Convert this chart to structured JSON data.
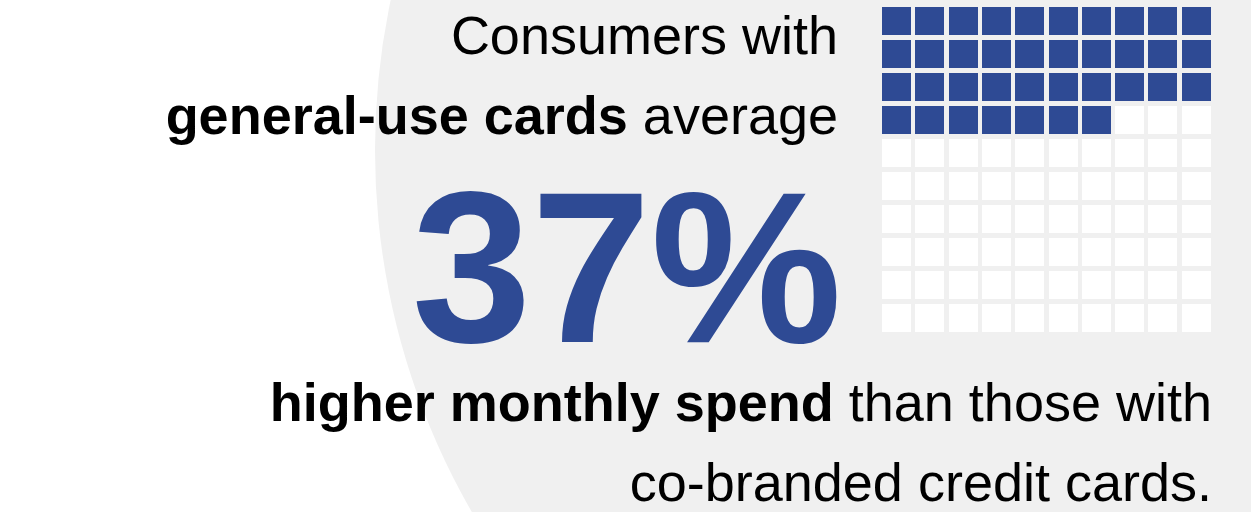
{
  "chart_data": {
    "type": "other",
    "title": "Consumers with general-use cards average",
    "values": [
      37
    ],
    "value_labels": [
      "37%"
    ],
    "color": "#2e4a94",
    "annotations": [
      "higher monthly spend than those with co-branded credit cards."
    ]
  }
}
